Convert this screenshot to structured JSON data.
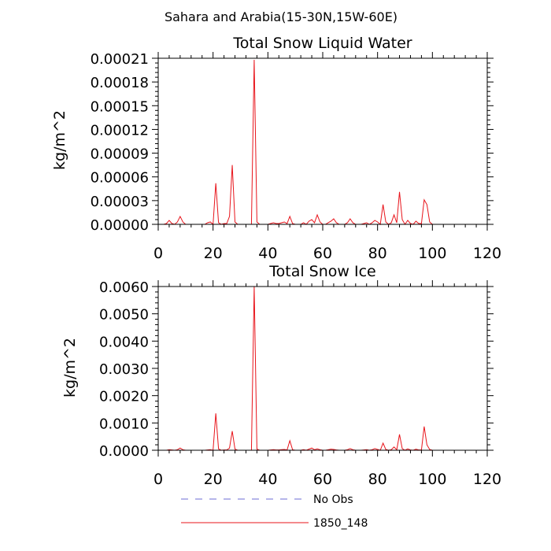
{
  "suptitle": "Sahara and Arabia(15-30N,15W-60E)",
  "legend": {
    "items": [
      {
        "label": "No Obs",
        "color": "#6b6bd6",
        "dash": "dashed"
      },
      {
        "label": "1850_148",
        "color": "#e8141b",
        "dash": "solid"
      }
    ]
  },
  "chart_data": [
    {
      "type": "line",
      "title": "Total Snow Liquid Water",
      "xlabel": "",
      "ylabel": "kg/m^2",
      "xlim": [
        0,
        120
      ],
      "ylim": [
        0,
        0.00021
      ],
      "xticks": [
        0,
        20,
        40,
        60,
        80,
        100,
        120
      ],
      "xtick_labels": [
        "0",
        "20",
        "40",
        "60",
        "80",
        "100",
        "120"
      ],
      "yticks": [
        0,
        3e-05,
        6e-05,
        9e-05,
        0.00012,
        0.00015,
        0.00018,
        0.00021
      ],
      "ytick_labels": [
        "0.00000",
        "0.00003",
        "0.00006",
        "0.00009",
        "0.00012",
        "0.00015",
        "0.00018",
        "0.00021"
      ],
      "grid": false,
      "series": [
        {
          "name": "1850_148",
          "color": "#e8141b",
          "x": [
            1,
            2,
            3,
            4,
            5,
            6,
            7,
            8,
            9,
            10,
            11,
            12,
            13,
            14,
            15,
            16,
            17,
            18,
            19,
            20,
            21,
            22,
            23,
            24,
            25,
            26,
            27,
            28,
            29,
            30,
            31,
            32,
            33,
            34,
            35,
            36,
            37,
            38,
            39,
            40,
            41,
            42,
            43,
            44,
            45,
            46,
            47,
            48,
            49,
            50,
            51,
            52,
            53,
            54,
            55,
            56,
            57,
            58,
            59,
            60,
            61,
            62,
            63,
            64,
            65,
            66,
            67,
            68,
            69,
            70,
            71,
            72,
            73,
            74,
            75,
            76,
            77,
            78,
            79,
            80,
            81,
            82,
            83,
            84,
            85,
            86,
            87,
            88,
            89,
            90,
            91,
            92,
            93,
            94,
            95,
            96,
            97,
            98,
            99,
            100
          ],
          "y": [
            0,
            0,
            1e-06,
            5e-06,
            1e-06,
            0,
            3e-06,
            1e-05,
            3e-06,
            0,
            0,
            0,
            0,
            0,
            0,
            0,
            0,
            2e-06,
            3e-06,
            0,
            5.2e-05,
            2e-06,
            0,
            1e-06,
            1e-06,
            1e-05,
            7.5e-05,
            3e-06,
            0,
            0,
            0,
            0,
            0,
            0,
            0.000208,
            3e-06,
            0,
            0,
            0,
            0,
            1e-06,
            2e-06,
            1e-06,
            1e-06,
            2e-06,
            3e-06,
            1e-06,
            1e-05,
            1e-06,
            0,
            0,
            0,
            2e-06,
            0,
            4e-06,
            6e-06,
            2e-06,
            1.2e-05,
            3e-06,
            0,
            0,
            2e-06,
            4e-06,
            7e-06,
            2e-06,
            0,
            0,
            0,
            2e-06,
            7e-06,
            2e-06,
            0,
            0,
            0,
            1e-06,
            2e-06,
            0,
            2e-06,
            5e-06,
            3e-06,
            0,
            2.5e-05,
            3e-06,
            0,
            2e-06,
            1.2e-05,
            2e-06,
            4.1e-05,
            6e-06,
            0,
            5e-06,
            1e-06,
            0,
            4e-06,
            1e-06,
            1e-06,
            3.1e-05,
            2.5e-05,
            3e-06,
            0
          ]
        }
      ]
    },
    {
      "type": "line",
      "title": "Total Snow Ice",
      "xlabel": "",
      "ylabel": "kg/m^2",
      "xlim": [
        0,
        120
      ],
      "ylim": [
        0,
        0.006
      ],
      "xticks": [
        0,
        20,
        40,
        60,
        80,
        100,
        120
      ],
      "xtick_labels": [
        "0",
        "20",
        "40",
        "60",
        "80",
        "100",
        "120"
      ],
      "yticks": [
        0,
        0.001,
        0.002,
        0.003,
        0.004,
        0.005,
        0.006
      ],
      "ytick_labels": [
        "0.0000",
        "0.0010",
        "0.0020",
        "0.0030",
        "0.0040",
        "0.0050",
        "0.0060"
      ],
      "grid": false,
      "series": [
        {
          "name": "1850_148",
          "color": "#e8141b",
          "x": [
            1,
            2,
            3,
            4,
            5,
            6,
            7,
            8,
            9,
            10,
            11,
            12,
            13,
            14,
            15,
            16,
            17,
            18,
            19,
            20,
            21,
            22,
            23,
            24,
            25,
            26,
            27,
            28,
            29,
            30,
            31,
            32,
            33,
            34,
            35,
            36,
            37,
            38,
            39,
            40,
            41,
            42,
            43,
            44,
            45,
            46,
            47,
            48,
            49,
            50,
            51,
            52,
            53,
            54,
            55,
            56,
            57,
            58,
            59,
            60,
            61,
            62,
            63,
            64,
            65,
            66,
            67,
            68,
            69,
            70,
            71,
            72,
            73,
            74,
            75,
            76,
            77,
            78,
            79,
            80,
            81,
            82,
            83,
            84,
            85,
            86,
            87,
            88,
            89,
            90,
            91,
            92,
            93,
            94,
            95,
            96,
            97,
            98,
            99,
            100
          ],
          "y": [
            0,
            0,
            0,
            2e-05,
            1e-05,
            0,
            2e-05,
            8e-05,
            2e-05,
            0,
            0,
            0,
            0,
            0,
            0,
            0,
            0,
            1e-05,
            2e-05,
            0,
            0.00135,
            5e-05,
            0,
            1e-05,
            1e-05,
            8e-05,
            0.0007,
            4e-05,
            0,
            0,
            0,
            0,
            0,
            0,
            0.006,
            4e-05,
            0,
            0,
            0,
            0,
            1e-05,
            2e-05,
            1e-05,
            1e-05,
            2e-05,
            3e-05,
            1e-05,
            0.00035,
            2e-05,
            0,
            0,
            0,
            2e-05,
            0,
            4e-05,
            8e-05,
            2e-05,
            5e-05,
            2e-05,
            0,
            0,
            2e-05,
            4e-05,
            3e-05,
            1e-05,
            0,
            0,
            0,
            2e-05,
            6e-05,
            2e-05,
            0,
            0,
            0,
            1e-05,
            2e-05,
            0,
            2e-05,
            6e-05,
            3e-05,
            0,
            0.00026,
            3e-05,
            0,
            2e-05,
            0.00012,
            2e-05,
            0.00058,
            6e-05,
            0,
            5e-05,
            1e-05,
            0,
            4e-05,
            1e-05,
            1e-05,
            0.00087,
            0.0002,
            3e-05,
            0
          ]
        }
      ]
    }
  ]
}
